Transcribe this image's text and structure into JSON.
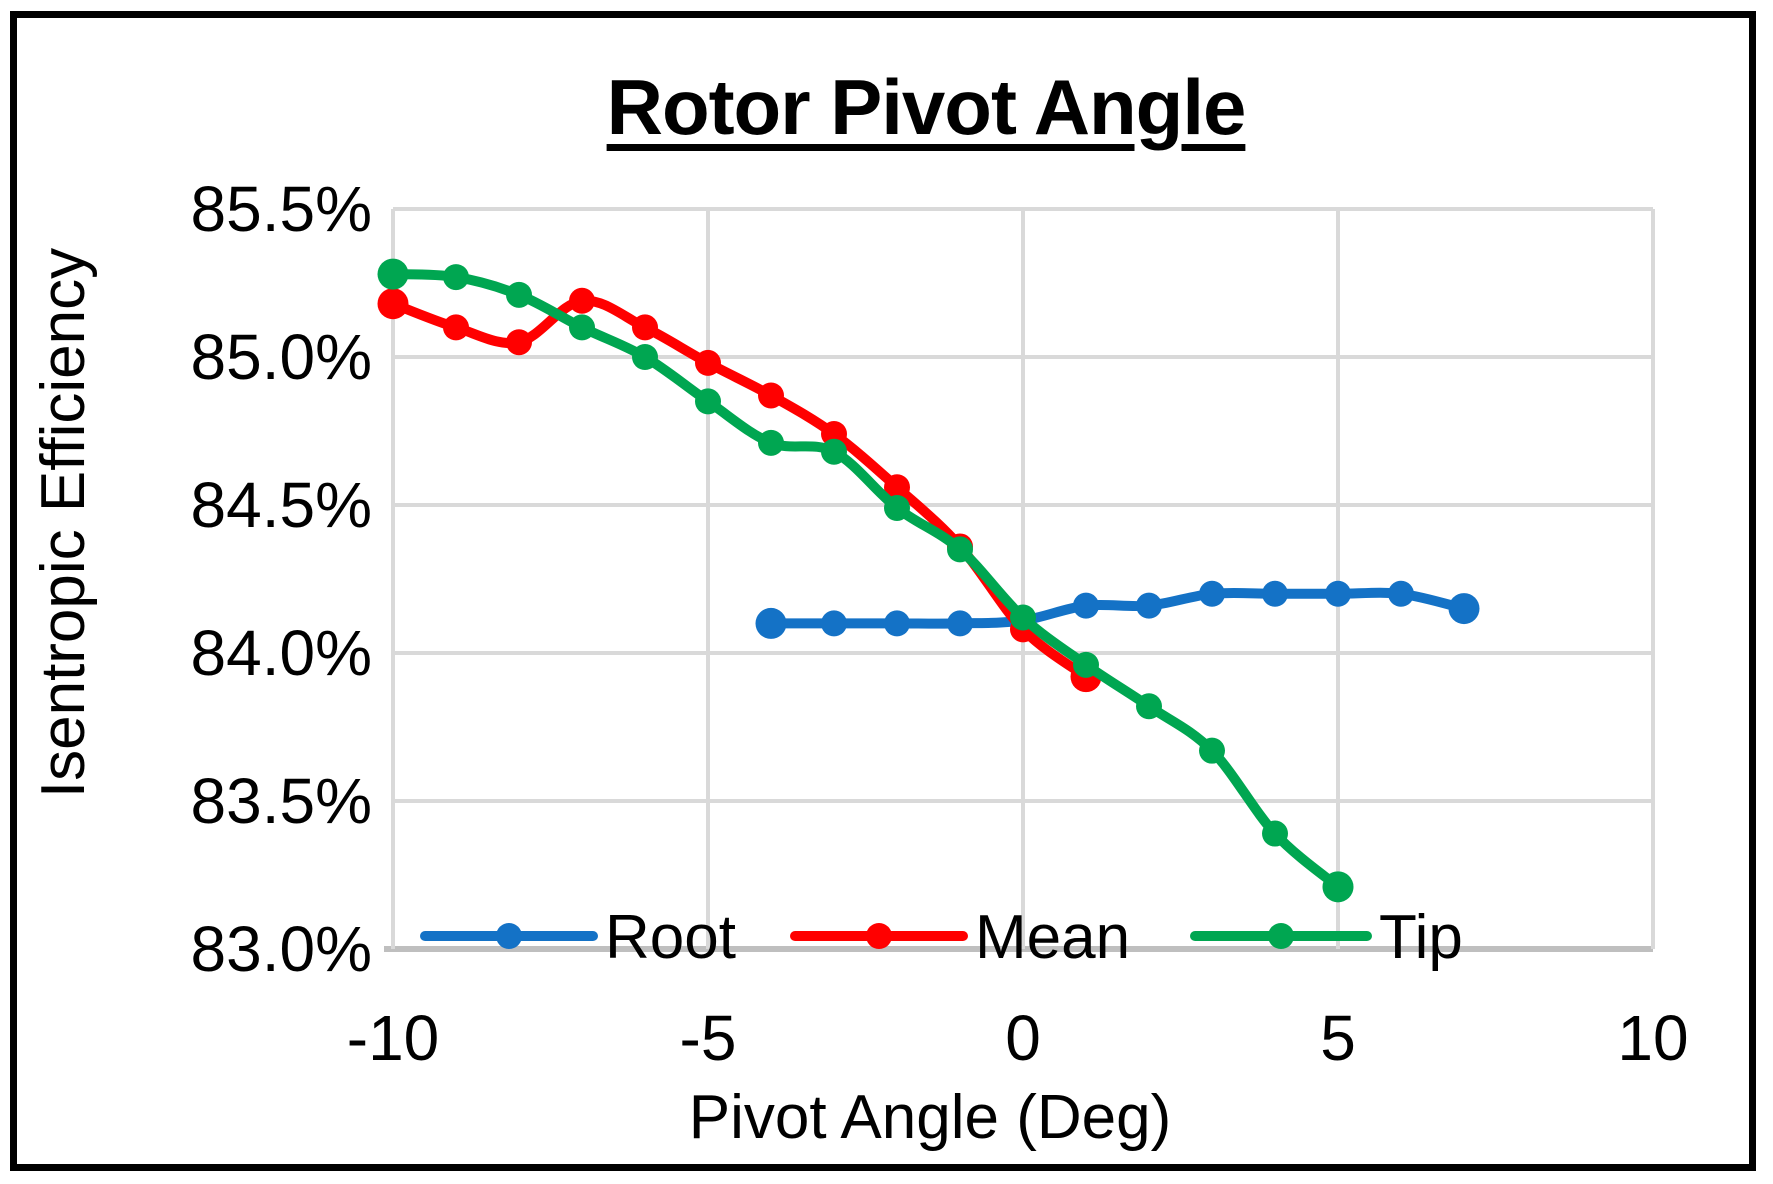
{
  "chart_data": {
    "type": "line",
    "title": "Rotor Pivot Angle",
    "xlabel": "Pivot Angle (Deg)",
    "ylabel": "Isentropic Efficiency",
    "xlim": [
      -10,
      10
    ],
    "ylim": [
      83.0,
      85.5
    ],
    "grid": true,
    "legend_position": "bottom-inside",
    "x_ticks": [
      {
        "v": -10,
        "label": "-10"
      },
      {
        "v": -5,
        "label": "-5"
      },
      {
        "v": 0,
        "label": "0"
      },
      {
        "v": 5,
        "label": "5"
      },
      {
        "v": 10,
        "label": "10"
      }
    ],
    "y_ticks": [
      {
        "v": 85.5,
        "label": "85.5%"
      },
      {
        "v": 85.0,
        "label": "85.0%"
      },
      {
        "v": 84.5,
        "label": "84.5%"
      },
      {
        "v": 84.0,
        "label": "84.0%"
      },
      {
        "v": 83.5,
        "label": "83.5%"
      },
      {
        "v": 83.0,
        "label": "83.0%"
      }
    ],
    "colors": {
      "gridline": "#D9D9D9",
      "axisline": "#BFBFBF",
      "text": "#000000"
    },
    "series": [
      {
        "name": "Root",
        "color": "#1472C6",
        "points": [
          [
            -4,
            84.1
          ],
          [
            -3,
            84.1
          ],
          [
            -2,
            84.1
          ],
          [
            -1,
            84.1
          ],
          [
            0,
            84.11
          ],
          [
            1,
            84.16
          ],
          [
            2,
            84.16
          ],
          [
            3,
            84.2
          ],
          [
            4,
            84.2
          ],
          [
            5,
            84.2
          ],
          [
            6,
            84.2
          ],
          [
            7,
            84.15
          ]
        ]
      },
      {
        "name": "Mean",
        "color": "#FF0000",
        "points": [
          [
            -10,
            85.18
          ],
          [
            -9,
            85.1
          ],
          [
            -8,
            85.05
          ],
          [
            -7,
            85.19
          ],
          [
            -6,
            85.1
          ],
          [
            -5,
            84.98
          ],
          [
            -4,
            84.87
          ],
          [
            -3,
            84.74
          ],
          [
            -2,
            84.56
          ],
          [
            -1,
            84.36
          ],
          [
            0,
            84.08
          ],
          [
            1,
            83.92
          ]
        ]
      },
      {
        "name": "Tip",
        "color": "#00A651",
        "points": [
          [
            -10,
            85.28
          ],
          [
            -9,
            85.27
          ],
          [
            -8,
            85.21
          ],
          [
            -7,
            85.1
          ],
          [
            -6,
            85.0
          ],
          [
            -5,
            84.85
          ],
          [
            -4,
            84.71
          ],
          [
            -3,
            84.68
          ],
          [
            -2,
            84.49
          ],
          [
            -1,
            84.35
          ],
          [
            0,
            84.12
          ],
          [
            1,
            83.96
          ],
          [
            2,
            83.82
          ],
          [
            3,
            83.67
          ],
          [
            4,
            83.39
          ],
          [
            5,
            83.21
          ]
        ]
      }
    ]
  }
}
